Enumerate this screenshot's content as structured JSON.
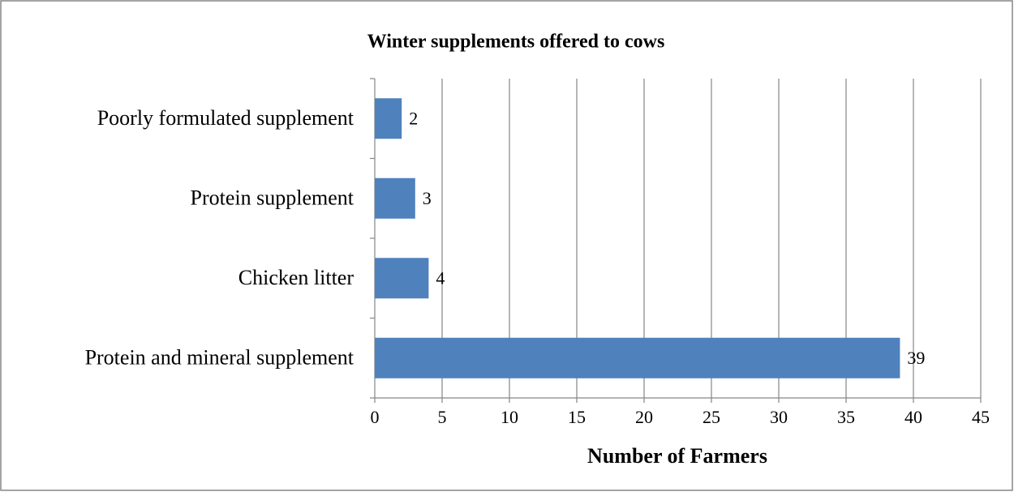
{
  "chart_data": {
    "type": "bar",
    "orientation": "horizontal",
    "title": "Winter supplements offered to cows",
    "x_label": "Number of Farmers",
    "categories": [
      "Poorly formulated supplement",
      "Protein supplement",
      "Chicken litter",
      "Protein and mineral supplement"
    ],
    "values": [
      2,
      3,
      4,
      39
    ],
    "color": "#4f81bd",
    "xlim": [
      0,
      45
    ],
    "xticks": [
      0,
      5,
      10,
      15,
      20,
      25,
      30,
      35,
      40,
      45
    ],
    "grid": true
  }
}
